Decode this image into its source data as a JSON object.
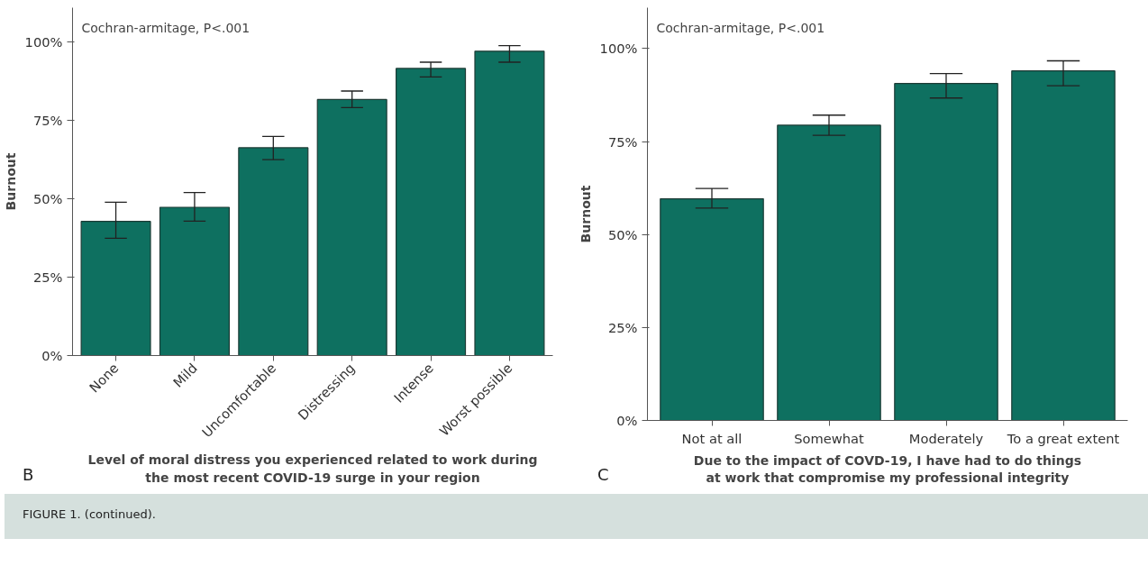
{
  "chart_data": [
    {
      "type": "bar",
      "categories": [
        "None",
        "Mild",
        "Uncomfortable",
        "Distressing",
        "Intense",
        "Worst possible"
      ],
      "values": [
        42.8,
        47.3,
        66.3,
        81.7,
        91.6,
        97.1
      ],
      "color": "#0e7060",
      "errors": [
        [
          37.4,
          48.9
        ],
        [
          42.9,
          52.0
        ],
        [
          62.5,
          69.9
        ],
        [
          79.1,
          84.4
        ],
        [
          88.9,
          93.6
        ],
        [
          93.6,
          98.9
        ]
      ],
      "ylabel": "Burnout",
      "xlabel": "Level of moral distress you experienced related to work during\nthe most recent COVID-19 surge in your region",
      "ylim": [
        0,
        111
      ],
      "yticks": [
        {
          "value": 0,
          "label": "0%"
        },
        {
          "value": 25,
          "label": "25%"
        },
        {
          "value": 50,
          "label": "50%"
        },
        {
          "value": 75,
          "label": "75%"
        },
        {
          "value": 100,
          "label": "100%"
        }
      ],
      "annotations": [
        "Cochran-armitage, P<.001",
        "B"
      ],
      "grid": false
    },
    {
      "type": "bar",
      "categories": [
        "Not at all",
        "Somewhat",
        "Moderately",
        "To a great extent"
      ],
      "values": [
        59.6,
        79.4,
        90.6,
        94.0
      ],
      "color": "#0e7060",
      "errors": [
        [
          57.1,
          62.4
        ],
        [
          76.7,
          82.1
        ],
        [
          86.7,
          93.3
        ],
        [
          90.0,
          96.7
        ]
      ],
      "ylabel": "Burnout",
      "xlabel": "Due to the impact of COVD-19, I have had to do things\nat work that compromise my professional integrity",
      "ylim": [
        0,
        111
      ],
      "yticks": [
        {
          "value": 0,
          "label": "0%"
        },
        {
          "value": 25,
          "label": "25%"
        },
        {
          "value": 50,
          "label": "50%"
        },
        {
          "value": 75,
          "label": "75%"
        },
        {
          "value": 100,
          "label": "100%"
        }
      ],
      "annotations": [
        "Cochran-armitage, P<.001",
        "C",
        "FIGURE 1. (continued)."
      ],
      "grid": false
    }
  ]
}
